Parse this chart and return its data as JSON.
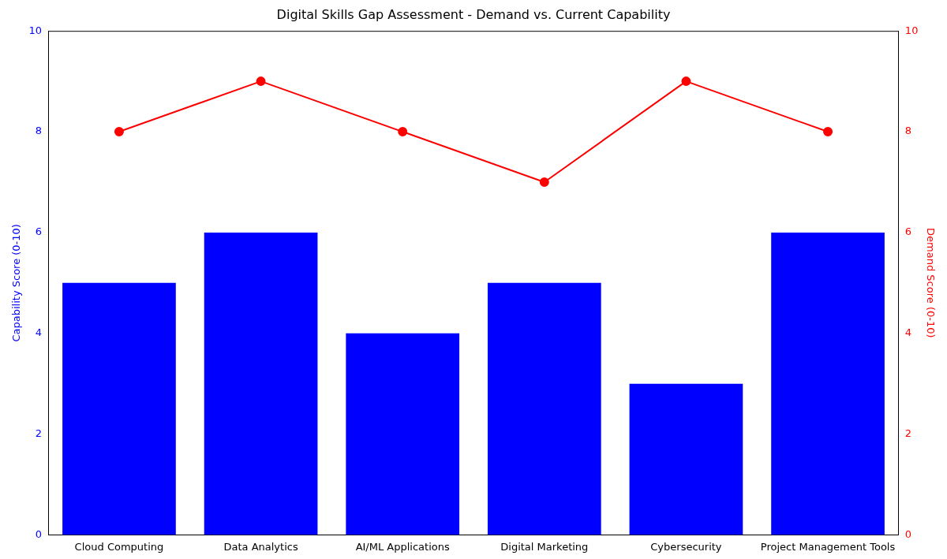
{
  "chart_data": {
    "type": "bar",
    "title": "Digital Skills Gap Assessment - Demand vs. Current Capability",
    "categories": [
      "Cloud Computing",
      "Data Analytics",
      "AI/ML Applications",
      "Digital Marketing",
      "Cybersecurity",
      "Project Management Tools"
    ],
    "series": [
      {
        "color": "#0000ff",
        "values": [
          5,
          6,
          4,
          5,
          3,
          6
        ]
      },
      {
        "type": "line",
        "axis": "y2",
        "color": "#ff0000",
        "values": [
          8,
          9,
          8,
          7,
          9,
          8
        ]
      }
    ],
    "ylabel": "Capability Score (0-10)",
    "y2label": "Demand Score (0-10)",
    "ylim": [
      0,
      10
    ],
    "yticks": [
      0,
      2,
      4,
      6,
      8,
      10
    ],
    "y2lim": [
      0,
      10
    ],
    "y2ticks": [
      0,
      2,
      4,
      6,
      8,
      10
    ],
    "marker": "circle",
    "line_style": "solid",
    "grid": false,
    "legend": false
  }
}
